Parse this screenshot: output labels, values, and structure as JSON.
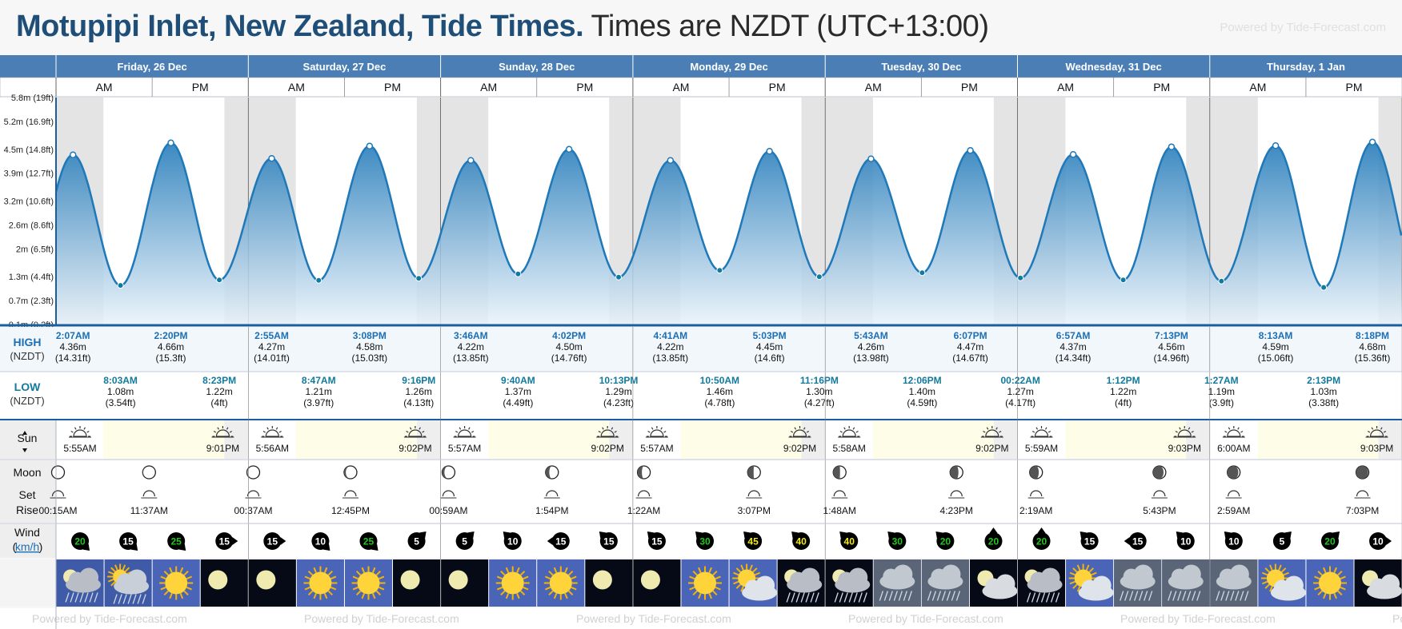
{
  "header": {
    "title": "Motupipi Inlet, New Zealand, Tide Times.",
    "subtitle": "Times are NZDT (UTC+13:00)",
    "powered": "Powered by Tide-Forecast.com"
  },
  "labels": {
    "am": "AM",
    "pm": "PM",
    "high": "HIGH",
    "low": "LOW",
    "tz": "(NZDT)",
    "sun": "Sun",
    "moon": "Moon",
    "set": "Set",
    "rise": "Rise",
    "wind": "Wind",
    "wind_unit": "km/h",
    "footer_powered": "Powered by Tide-Forecast.com"
  },
  "colors": {
    "header_bar": "#4a7eb4",
    "tide_dark": "#1f78b8",
    "tide_light": "#e8f2fa",
    "night": "#e4e4e4",
    "high_label": "#1c6fb4",
    "low_label": "#137a9c",
    "sun_day": "#fdfde8"
  },
  "days": [
    {
      "label": "Friday, 26 Dec"
    },
    {
      "label": "Saturday, 27 Dec"
    },
    {
      "label": "Sunday, 28 Dec"
    },
    {
      "label": "Monday, 29 Dec"
    },
    {
      "label": "Tuesday, 30 Dec"
    },
    {
      "label": "Wednesday, 31 Dec"
    },
    {
      "label": "Thursday, 1 Jan"
    }
  ],
  "chart_data": {
    "type": "area",
    "ylabel_ticks": [
      "0.1m (0.2ft)",
      "0.7m (2.3ft)",
      "1.3m (4.4ft)",
      "2m (6.5ft)",
      "2.6m (8.6ft)",
      "3.2m (10.6ft)",
      "3.9m (12.7ft)",
      "4.5m (14.8ft)",
      "5.2m (16.9ft)",
      "5.8m (19ft)"
    ],
    "ylim": [
      0.1,
      5.8
    ],
    "x_unit": "hours from Friday 26 Dec 00:00",
    "highs": [
      {
        "day": 0,
        "time": "2:07AM",
        "h": 2.117,
        "m": "4.36m",
        "ft": "(14.31ft)",
        "v": 4.36
      },
      {
        "day": 0,
        "time": "2:20PM",
        "h": 14.333,
        "m": "4.66m",
        "ft": "(15.3ft)",
        "v": 4.66
      },
      {
        "day": 1,
        "time": "2:55AM",
        "h": 26.917,
        "m": "4.27m",
        "ft": "(14.01ft)",
        "v": 4.27
      },
      {
        "day": 1,
        "time": "3:08PM",
        "h": 39.133,
        "m": "4.58m",
        "ft": "(15.03ft)",
        "v": 4.58
      },
      {
        "day": 2,
        "time": "3:46AM",
        "h": 51.767,
        "m": "4.22m",
        "ft": "(13.85ft)",
        "v": 4.22
      },
      {
        "day": 2,
        "time": "4:02PM",
        "h": 64.033,
        "m": "4.50m",
        "ft": "(14.76ft)",
        "v": 4.5
      },
      {
        "day": 3,
        "time": "4:41AM",
        "h": 76.683,
        "m": "4.22m",
        "ft": "(13.85ft)",
        "v": 4.22
      },
      {
        "day": 3,
        "time": "5:03PM",
        "h": 89.05,
        "m": "4.45m",
        "ft": "(14.6ft)",
        "v": 4.45
      },
      {
        "day": 4,
        "time": "5:43AM",
        "h": 101.717,
        "m": "4.26m",
        "ft": "(13.98ft)",
        "v": 4.26
      },
      {
        "day": 4,
        "time": "6:07PM",
        "h": 114.117,
        "m": "4.47m",
        "ft": "(14.67ft)",
        "v": 4.47
      },
      {
        "day": 5,
        "time": "6:57AM",
        "h": 126.95,
        "m": "4.37m",
        "ft": "(14.34ft)",
        "v": 4.37
      },
      {
        "day": 5,
        "time": "7:13PM",
        "h": 139.217,
        "m": "4.56m",
        "ft": "(14.96ft)",
        "v": 4.56
      },
      {
        "day": 6,
        "time": "8:13AM",
        "h": 152.217,
        "m": "4.59m",
        "ft": "(15.06ft)",
        "v": 4.59
      },
      {
        "day": 6,
        "time": "8:18PM",
        "h": 164.3,
        "m": "4.68m",
        "ft": "(15.36ft)",
        "v": 4.68
      }
    ],
    "lows": [
      {
        "day": 0,
        "time": "8:03AM",
        "h": 8.05,
        "m": "1.08m",
        "ft": "(3.54ft)",
        "v": 1.08
      },
      {
        "day": 0,
        "time": "8:23PM",
        "h": 20.383,
        "m": "1.22m",
        "ft": "(4ft)",
        "v": 1.22
      },
      {
        "day": 1,
        "time": "8:47AM",
        "h": 32.783,
        "m": "1.21m",
        "ft": "(3.97ft)",
        "v": 1.21
      },
      {
        "day": 1,
        "time": "9:16PM",
        "h": 45.267,
        "m": "1.26m",
        "ft": "(4.13ft)",
        "v": 1.26
      },
      {
        "day": 2,
        "time": "9:40AM",
        "h": 57.667,
        "m": "1.37m",
        "ft": "(4.49ft)",
        "v": 1.37
      },
      {
        "day": 2,
        "time": "10:13PM",
        "h": 70.217,
        "m": "1.29m",
        "ft": "(4.23ft)",
        "v": 1.29
      },
      {
        "day": 3,
        "time": "10:50AM",
        "h": 82.833,
        "m": "1.46m",
        "ft": "(4.78ft)",
        "v": 1.46
      },
      {
        "day": 3,
        "time": "11:16PM",
        "h": 95.267,
        "m": "1.30m",
        "ft": "(4.27ft)",
        "v": 1.3
      },
      {
        "day": 4,
        "time": "12:06PM",
        "h": 108.1,
        "m": "1.40m",
        "ft": "(4.59ft)",
        "v": 1.4
      },
      {
        "day": 5,
        "time": "00:22AM",
        "h": 120.367,
        "m": "1.27m",
        "ft": "(4.17ft)",
        "v": 1.27
      },
      {
        "day": 5,
        "time": "1:12PM",
        "h": 133.2,
        "m": "1.22m",
        "ft": "(4ft)",
        "v": 1.22
      },
      {
        "day": 6,
        "time": "1:27AM",
        "h": 145.45,
        "m": "1.19m",
        "ft": "(3.9ft)",
        "v": 1.19
      },
      {
        "day": 6,
        "time": "2:13PM",
        "h": 158.217,
        "m": "1.03m",
        "ft": "(3.38ft)",
        "v": 1.03
      }
    ],
    "sun": [
      {
        "rise": "5:55AM",
        "rise_h": 5.917,
        "set": "9:01PM",
        "set_h": 21.017
      },
      {
        "rise": "5:56AM",
        "rise_h": 5.933,
        "set": "9:02PM",
        "set_h": 21.033
      },
      {
        "rise": "5:57AM",
        "rise_h": 5.95,
        "set": "9:02PM",
        "set_h": 21.033
      },
      {
        "rise": "5:57AM",
        "rise_h": 5.95,
        "set": "9:02PM",
        "set_h": 21.033
      },
      {
        "rise": "5:58AM",
        "rise_h": 5.967,
        "set": "9:02PM",
        "set_h": 21.033
      },
      {
        "rise": "5:59AM",
        "rise_h": 5.983,
        "set": "9:03PM",
        "set_h": 21.05
      },
      {
        "rise": "6:00AM",
        "rise_h": 6.0,
        "set": "9:03PM",
        "set_h": 21.05
      }
    ],
    "moon": [
      {
        "h": 0.25,
        "time": "00:15AM",
        "phase": 0.52
      },
      {
        "h": 11.617,
        "time": "11:37AM",
        "phase": 0.56
      },
      {
        "h": 24.617,
        "time": "00:37AM",
        "phase": 0.58
      },
      {
        "h": 36.75,
        "time": "12:45PM",
        "phase": 0.62
      },
      {
        "h": 48.983,
        "time": "00:59AM",
        "phase": 0.64
      },
      {
        "h": 61.9,
        "time": "1:54PM",
        "phase": 0.68
      },
      {
        "h": 73.367,
        "time": "1:22AM",
        "phase": 0.7
      },
      {
        "h": 87.117,
        "time": "3:07PM",
        "phase": 0.74
      },
      {
        "h": 97.8,
        "time": "1:48AM",
        "phase": 0.76
      },
      {
        "h": 112.383,
        "time": "4:23PM",
        "phase": 0.8
      },
      {
        "h": 122.317,
        "time": "2:19AM",
        "phase": 0.82
      },
      {
        "h": 137.717,
        "time": "5:43PM",
        "phase": 0.86
      },
      {
        "h": 146.983,
        "time": "2:59AM",
        "phase": 0.88
      },
      {
        "h": 163.05,
        "time": "7:03PM",
        "phase": 0.92
      }
    ],
    "wind": [
      {
        "speed": "20",
        "color": "#22c71d",
        "dir": 135
      },
      {
        "speed": "15",
        "color": "#ffffff",
        "dir": 135
      },
      {
        "speed": "25",
        "color": "#22c71d",
        "dir": 135
      },
      {
        "speed": "15",
        "color": "#ffffff",
        "dir": 90
      },
      {
        "speed": "15",
        "color": "#ffffff",
        "dir": 90
      },
      {
        "speed": "10",
        "color": "#ffffff",
        "dir": 135
      },
      {
        "speed": "25",
        "color": "#22c71d",
        "dir": 135
      },
      {
        "speed": "5",
        "color": "#ffffff",
        "dir": 45
      },
      {
        "speed": "5",
        "color": "#ffffff",
        "dir": 45
      },
      {
        "speed": "10",
        "color": "#ffffff",
        "dir": -45
      },
      {
        "speed": "15",
        "color": "#ffffff",
        "dir": -90
      },
      {
        "speed": "15",
        "color": "#ffffff",
        "dir": -45
      },
      {
        "speed": "15",
        "color": "#ffffff",
        "dir": -45
      },
      {
        "speed": "30",
        "color": "#22c71d",
        "dir": -45
      },
      {
        "speed": "45",
        "color": "#f2ea1b",
        "dir": -45
      },
      {
        "speed": "40",
        "color": "#f2ea1b",
        "dir": -45
      },
      {
        "speed": "40",
        "color": "#f2ea1b",
        "dir": -45
      },
      {
        "speed": "30",
        "color": "#22c71d",
        "dir": -45
      },
      {
        "speed": "20",
        "color": "#22c71d",
        "dir": -45
      },
      {
        "speed": "20",
        "color": "#22c71d",
        "dir": 0
      },
      {
        "speed": "20",
        "color": "#22c71d",
        "dir": 0
      },
      {
        "speed": "15",
        "color": "#ffffff",
        "dir": -45
      },
      {
        "speed": "15",
        "color": "#ffffff",
        "dir": -90
      },
      {
        "speed": "10",
        "color": "#ffffff",
        "dir": -45
      },
      {
        "speed": "10",
        "color": "#ffffff",
        "dir": -45
      },
      {
        "speed": "5",
        "color": "#ffffff",
        "dir": 45
      },
      {
        "speed": "20",
        "color": "#22c71d",
        "dir": 45
      },
      {
        "speed": "10",
        "color": "#ffffff",
        "dir": 90
      }
    ],
    "weather": [
      "cloud-rain-moon",
      "sun-cloud-rain",
      "sun",
      "moon-clear",
      "moon-clear",
      "sun",
      "sun",
      "moon-clear",
      "moon-clear",
      "sun",
      "sun",
      "moon-clear",
      "moon-clear",
      "sun",
      "sun-cloud",
      "moon-cloud-rain",
      "moon-cloud-rain",
      "cloud-rain",
      "cloud-rain",
      "moon-cloud",
      "moon-cloud-rain",
      "sun-cloud",
      "cloud-rain",
      "cloud-rain",
      "cloud-rain",
      "sun-cloud",
      "sun",
      "moon-cloud"
    ]
  }
}
